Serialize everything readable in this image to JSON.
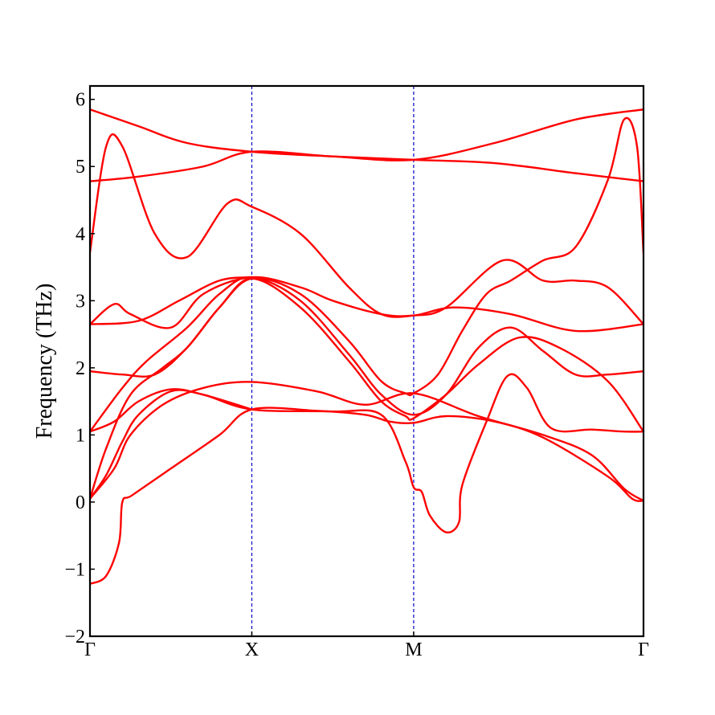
{
  "chart_data": {
    "type": "line",
    "title": "",
    "xlabel": "",
    "ylabel": "Frequency (THz)",
    "ylim": [
      -2,
      6.2
    ],
    "yticks": [
      -2,
      -1,
      0,
      1,
      2,
      3,
      4,
      5,
      6
    ],
    "ytick_labels": [
      "−2",
      "−1",
      "0",
      "1",
      "2",
      "3",
      "4",
      "5",
      "6"
    ],
    "xticks": [
      0,
      1,
      2,
      3.42
    ],
    "xtick_labels": [
      "Γ",
      "X",
      "M",
      "Γ"
    ],
    "xlim": [
      0,
      3.42
    ],
    "high_symmetry_lines": [
      1,
      2
    ],
    "grid": false,
    "colors": {
      "band": "#ff0000",
      "symmetry_line": "#0000cc",
      "axes": "#000000"
    },
    "series": [
      {
        "values": [
          [
            0,
            -1.22
          ],
          [
            0.1,
            -1.1
          ],
          [
            0.18,
            -0.6
          ],
          [
            0.2,
            0
          ],
          [
            0.26,
            0.1
          ],
          [
            0.5,
            0.5
          ],
          [
            0.8,
            1.0
          ],
          [
            1,
            1.38
          ],
          [
            1.4,
            1.36
          ],
          [
            1.7,
            1.3
          ],
          [
            1.85,
            1.2
          ],
          [
            2,
            1.18
          ],
          [
            2.2,
            1.28
          ],
          [
            2.5,
            1.2
          ],
          [
            2.8,
            0.96
          ],
          [
            3.2,
            0.38
          ],
          [
            3.35,
            0.05
          ],
          [
            3.42,
            0.02
          ]
        ]
      },
      {
        "values": [
          [
            0,
            0.05
          ],
          [
            0.1,
            0.4
          ],
          [
            0.2,
            0.9
          ],
          [
            0.3,
            1.3
          ],
          [
            0.5,
            1.65
          ],
          [
            0.7,
            1.6
          ],
          [
            1,
            1.38
          ],
          [
            1.5,
            1.35
          ],
          [
            1.8,
            1.3
          ],
          [
            1.95,
            0.6
          ],
          [
            2,
            0.22
          ],
          [
            2.05,
            0.15
          ],
          [
            2.1,
            -0.2
          ],
          [
            2.2,
            -0.45
          ],
          [
            2.28,
            -0.3
          ],
          [
            2.3,
            0.25
          ],
          [
            2.45,
            1.2
          ],
          [
            2.58,
            1.88
          ],
          [
            2.7,
            1.7
          ],
          [
            2.85,
            1.1
          ],
          [
            3.1,
            1.08
          ],
          [
            3.3,
            1.05
          ],
          [
            3.42,
            1.05
          ]
        ]
      },
      {
        "values": [
          [
            0,
            1.05
          ],
          [
            0.15,
            1.2
          ],
          [
            0.3,
            1.5
          ],
          [
            0.5,
            1.68
          ],
          [
            0.7,
            1.6
          ],
          [
            1,
            1.38
          ]
        ]
      },
      {
        "values": [
          [
            0,
            0.05
          ],
          [
            0.15,
            0.5
          ],
          [
            0.25,
            1.0
          ],
          [
            0.45,
            1.45
          ],
          [
            0.7,
            1.7
          ],
          [
            1,
            1.79
          ],
          [
            1.4,
            1.65
          ],
          [
            1.7,
            1.45
          ],
          [
            2,
            1.62
          ],
          [
            2.4,
            1.28
          ],
          [
            2.8,
            1.0
          ],
          [
            3.1,
            0.7
          ],
          [
            3.3,
            0.2
          ],
          [
            3.42,
            0.02
          ]
        ]
      },
      {
        "values": [
          [
            0,
            0.05
          ],
          [
            0.1,
            0.8
          ],
          [
            0.25,
            1.6
          ],
          [
            0.45,
            2.0
          ],
          [
            0.6,
            2.3
          ],
          [
            0.8,
            2.9
          ],
          [
            1,
            3.33
          ],
          [
            1.3,
            2.9
          ],
          [
            1.6,
            2.1
          ],
          [
            1.8,
            1.5
          ],
          [
            1.95,
            1.28
          ],
          [
            2,
            1.25
          ],
          [
            2.2,
            1.6
          ],
          [
            2.4,
            2.05
          ],
          [
            2.65,
            2.45
          ],
          [
            2.9,
            2.3
          ],
          [
            3.2,
            1.8
          ],
          [
            3.42,
            1.05
          ]
        ]
      },
      {
        "values": [
          [
            0,
            1.05
          ],
          [
            0.2,
            1.7
          ],
          [
            0.35,
            2.1
          ],
          [
            0.6,
            2.6
          ],
          [
            0.8,
            3.1
          ],
          [
            1,
            3.35
          ],
          [
            1.3,
            3.0
          ],
          [
            1.6,
            2.2
          ],
          [
            1.8,
            1.6
          ],
          [
            2,
            1.3
          ],
          [
            2.2,
            1.6
          ],
          [
            2.4,
            2.3
          ],
          [
            2.6,
            2.6
          ],
          [
            2.8,
            2.25
          ],
          [
            3.0,
            1.9
          ],
          [
            3.2,
            1.9
          ],
          [
            3.42,
            1.95
          ]
        ]
      },
      {
        "values": [
          [
            0,
            1.95
          ],
          [
            0.2,
            1.9
          ],
          [
            0.4,
            1.9
          ],
          [
            0.6,
            2.3
          ],
          [
            0.8,
            2.9
          ],
          [
            1,
            3.33
          ],
          [
            1.3,
            3.1
          ],
          [
            1.6,
            2.4
          ],
          [
            1.8,
            1.8
          ],
          [
            1.95,
            1.62
          ],
          [
            2,
            1.62
          ],
          [
            2.15,
            1.9
          ],
          [
            2.3,
            2.55
          ],
          [
            2.45,
            3.1
          ],
          [
            2.6,
            3.3
          ],
          [
            2.8,
            3.6
          ],
          [
            3.0,
            3.8
          ],
          [
            3.2,
            4.8
          ],
          [
            3.3,
            5.7
          ],
          [
            3.38,
            5.3
          ],
          [
            3.42,
            3.7
          ]
        ]
      },
      {
        "values": [
          [
            0,
            2.65
          ],
          [
            0.15,
            2.95
          ],
          [
            0.25,
            2.8
          ],
          [
            0.5,
            2.6
          ],
          [
            0.7,
            3.1
          ],
          [
            1,
            3.35
          ],
          [
            1.3,
            3.2
          ],
          [
            1.5,
            3.0
          ],
          [
            1.8,
            2.8
          ],
          [
            2,
            2.78
          ],
          [
            2.25,
            2.9
          ],
          [
            2.6,
            2.8
          ],
          [
            3.0,
            2.55
          ],
          [
            3.42,
            2.65
          ]
        ]
      },
      {
        "values": [
          [
            0,
            2.65
          ],
          [
            0.3,
            2.7
          ],
          [
            0.55,
            3.0
          ],
          [
            0.8,
            3.3
          ],
          [
            1,
            3.35
          ]
        ]
      },
      {
        "values": [
          [
            0,
            3.72
          ],
          [
            0.1,
            5.3
          ],
          [
            0.2,
            5.3
          ],
          [
            0.4,
            4.0
          ],
          [
            0.6,
            3.65
          ],
          [
            0.85,
            4.45
          ],
          [
            1,
            4.4
          ],
          [
            1.3,
            4.0
          ],
          [
            1.6,
            3.2
          ],
          [
            1.8,
            2.8
          ],
          [
            2,
            2.78
          ],
          [
            2.2,
            2.9
          ],
          [
            2.55,
            3.6
          ],
          [
            2.8,
            3.3
          ],
          [
            3.0,
            3.3
          ],
          [
            3.2,
            3.2
          ],
          [
            3.42,
            2.65
          ]
        ]
      },
      {
        "values": [
          [
            0,
            4.78
          ],
          [
            0.3,
            4.85
          ],
          [
            0.7,
            5.0
          ],
          [
            1,
            5.22
          ],
          [
            1.5,
            5.15
          ],
          [
            2,
            5.1
          ],
          [
            2.5,
            5.05
          ],
          [
            3.0,
            4.9
          ],
          [
            3.42,
            4.78
          ]
        ]
      },
      {
        "values": [
          [
            0,
            5.85
          ],
          [
            0.3,
            5.6
          ],
          [
            0.6,
            5.35
          ],
          [
            1,
            5.22
          ],
          [
            1.5,
            5.15
          ],
          [
            2,
            5.1
          ],
          [
            2.5,
            5.35
          ],
          [
            3.0,
            5.7
          ],
          [
            3.42,
            5.85
          ]
        ]
      }
    ]
  }
}
